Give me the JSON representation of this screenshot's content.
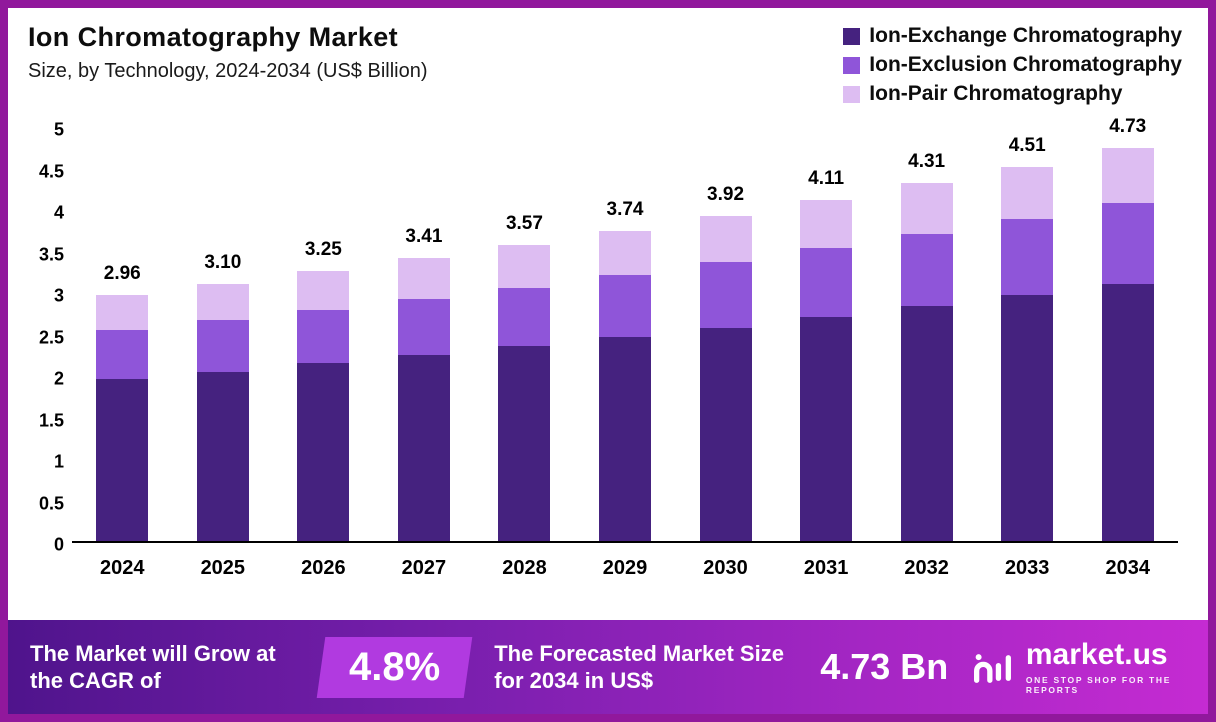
{
  "header": {
    "title": "Ion Chromatography Market",
    "subtitle": "Size, by Technology, 2024-2034 (US$ Billion)"
  },
  "legend": [
    {
      "label": "Ion-Exchange Chromatography",
      "color": "#45227f"
    },
    {
      "label": "Ion-Exclusion Chromatography",
      "color": "#8f55d9"
    },
    {
      "label": "Ion-Pair Chromatography",
      "color": "#ddbdf2"
    }
  ],
  "chart_data": {
    "type": "bar",
    "stacked": true,
    "title": "Ion Chromatography Market",
    "subtitle": "Size, by Technology, 2024-2034 (US$ Billion)",
    "xlabel": "",
    "ylabel": "US$ Billion",
    "ylim": [
      0,
      5
    ],
    "grid": false,
    "legend_position": "top-right",
    "categories": [
      "2024",
      "2025",
      "2026",
      "2027",
      "2028",
      "2029",
      "2030",
      "2031",
      "2032",
      "2033",
      "2034"
    ],
    "series": [
      {
        "name": "Ion-Exchange Chromatography",
        "color": "#45227f",
        "values": [
          1.95,
          2.04,
          2.14,
          2.24,
          2.35,
          2.46,
          2.57,
          2.7,
          2.83,
          2.96,
          3.1
        ]
      },
      {
        "name": "Ion-Exclusion Chromatography",
        "color": "#8f55d9",
        "values": [
          0.59,
          0.62,
          0.64,
          0.67,
          0.7,
          0.74,
          0.79,
          0.83,
          0.87,
          0.92,
          0.97
        ]
      },
      {
        "name": "Ion-Pair Chromatography",
        "color": "#ddbdf2",
        "values": [
          0.42,
          0.44,
          0.47,
          0.5,
          0.52,
          0.54,
          0.56,
          0.58,
          0.61,
          0.63,
          0.66
        ]
      }
    ],
    "totals": [
      "2.96",
      "3.10",
      "3.25",
      "3.41",
      "3.57",
      "3.74",
      "3.92",
      "4.11",
      "4.31",
      "4.51",
      "4.73"
    ],
    "yticks": [
      "0",
      "0.5",
      "1",
      "1.5",
      "2",
      "2.5",
      "3",
      "3.5",
      "4",
      "4.5",
      "5"
    ]
  },
  "footer": {
    "cagr_text": "The Market will Grow at the CAGR of",
    "cagr_value": "4.8%",
    "forecast_text": "The Forecasted Market Size for 2034 in US$",
    "forecast_value": "4.73 Bn",
    "brand": "market.us",
    "brand_tagline": "ONE STOP SHOP FOR THE REPORTS"
  }
}
